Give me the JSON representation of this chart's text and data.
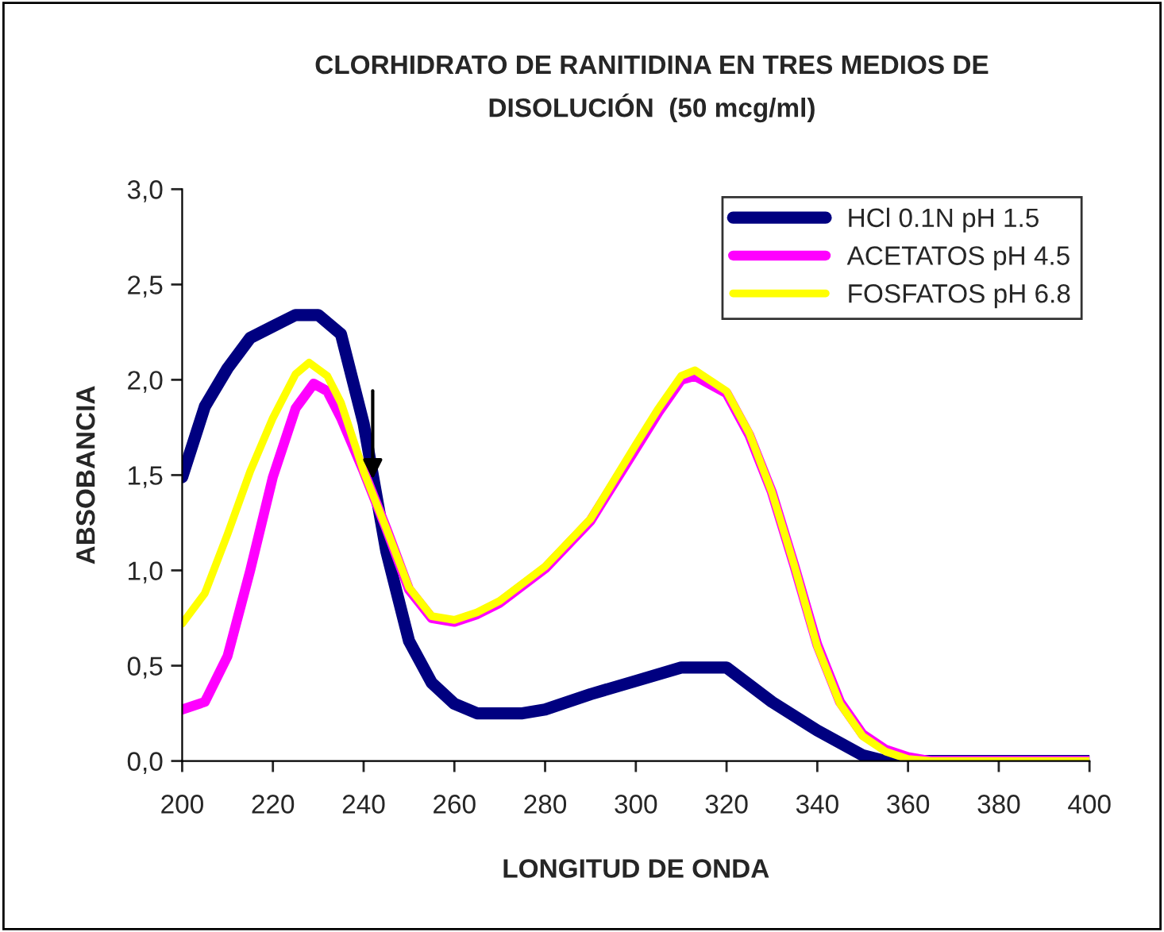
{
  "chart_data": {
    "type": "line",
    "title": "CLORHIDRATO DE RANITIDINA EN TRES MEDIOS DE\nDISOLUCIÓN  (50 mcg/ml)",
    "xlabel": "LONGITUD DE ONDA",
    "ylabel": "ABSOBANCIA",
    "xlim": [
      200,
      400
    ],
    "xticks": [
      200,
      220,
      240,
      260,
      280,
      300,
      320,
      340,
      360,
      380,
      400
    ],
    "ylim": [
      0,
      3
    ],
    "yticks": [
      {
        "value": 0,
        "label": "0,0"
      },
      {
        "value": 0.5,
        "label": "0,5"
      },
      {
        "value": 1,
        "label": "1,0"
      },
      {
        "value": 1.5,
        "label": "1,5"
      },
      {
        "value": 2,
        "label": "2,0"
      },
      {
        "value": 2.5,
        "label": "2,5"
      },
      {
        "value": 3,
        "label": "3,0"
      }
    ],
    "grid": false,
    "legend": "top right",
    "marker": "none",
    "line_style": "solid",
    "series": [
      {
        "name": "HCl 0.1N pH 1.5",
        "color": "#000080",
        "x": [
          200,
          205,
          210,
          215,
          220,
          225,
          230,
          235,
          240,
          245,
          250,
          255,
          260,
          265,
          270,
          275,
          280,
          290,
          300,
          310,
          320,
          330,
          340,
          350,
          355,
          360,
          380,
          400
        ],
        "values": [
          1.49,
          1.86,
          2.06,
          2.22,
          2.28,
          2.34,
          2.34,
          2.24,
          1.77,
          1.1,
          0.63,
          0.41,
          0.3,
          0.25,
          0.25,
          0.25,
          0.27,
          0.35,
          0.42,
          0.49,
          0.49,
          0.31,
          0.16,
          0.03,
          0.0,
          0.0,
          0.0,
          0.0
        ]
      },
      {
        "name": "ACETATOS pH 4.5",
        "color": "#ff00ff",
        "x": [
          200,
          205,
          210,
          215,
          220,
          225,
          229,
          232,
          235,
          240,
          245,
          250,
          255,
          260,
          265,
          270,
          280,
          290,
          300,
          305,
          310,
          313,
          320,
          325,
          330,
          335,
          340,
          345,
          350,
          355,
          360,
          365,
          380,
          400
        ],
        "values": [
          0.27,
          0.31,
          0.55,
          1.0,
          1.49,
          1.85,
          1.98,
          1.94,
          1.8,
          1.52,
          1.22,
          0.9,
          0.75,
          0.73,
          0.77,
          0.83,
          1.01,
          1.26,
          1.64,
          1.83,
          2.0,
          2.02,
          1.93,
          1.71,
          1.41,
          1.02,
          0.61,
          0.31,
          0.14,
          0.06,
          0.02,
          0.0,
          0.0,
          0.0
        ]
      },
      {
        "name": "FOSFATOS pH 6.8",
        "color": "#ffff00",
        "x": [
          200,
          205,
          210,
          215,
          220,
          225,
          228,
          232,
          235,
          240,
          245,
          250,
          255,
          260,
          265,
          270,
          280,
          290,
          300,
          305,
          310,
          313,
          320,
          325,
          330,
          335,
          340,
          345,
          350,
          355,
          360,
          365,
          380,
          400
        ],
        "values": [
          0.72,
          0.88,
          1.19,
          1.52,
          1.8,
          2.03,
          2.09,
          2.02,
          1.88,
          1.52,
          1.22,
          0.91,
          0.76,
          0.74,
          0.78,
          0.84,
          1.02,
          1.27,
          1.66,
          1.85,
          2.02,
          2.05,
          1.94,
          1.72,
          1.41,
          1.02,
          0.6,
          0.3,
          0.13,
          0.05,
          0.01,
          0.0,
          0.0,
          0.0
        ]
      }
    ]
  }
}
